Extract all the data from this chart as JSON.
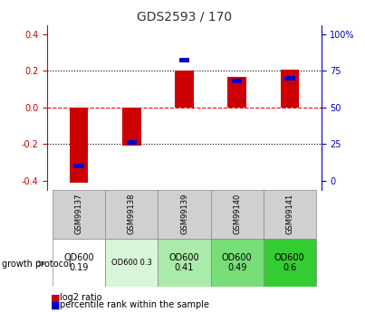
{
  "title": "GDS2593 / 170",
  "samples": [
    "GSM99137",
    "GSM99138",
    "GSM99139",
    "GSM99140",
    "GSM99141"
  ],
  "log2_ratio": [
    -0.41,
    -0.21,
    0.2,
    0.165,
    0.205
  ],
  "percentile_rank": [
    10,
    26,
    82,
    68,
    70
  ],
  "ylim": [
    -0.45,
    0.45
  ],
  "left_yticks": [
    -0.4,
    -0.2,
    0.0,
    0.2,
    0.4
  ],
  "right_yticks": [
    0,
    25,
    50,
    75,
    100
  ],
  "growth_protocol_labels": [
    "OD600\n0.19",
    "OD600 0.3",
    "OD600\n0.41",
    "OD600\n0.49",
    "OD600\n0.6"
  ],
  "od_colors": [
    "#ffffff",
    "#d8f5d8",
    "#aaeaaa",
    "#77dd77",
    "#33cc33"
  ],
  "bar_color_red": "#cc0000",
  "bar_color_blue": "#0000cc",
  "title_color": "#333333",
  "axis_label_color_red": "#cc0000",
  "axis_label_color_blue": "#0000bb",
  "zero_line_color": "#ff0000",
  "table_bg_gray": "#d0d0d0",
  "small_font": 7
}
